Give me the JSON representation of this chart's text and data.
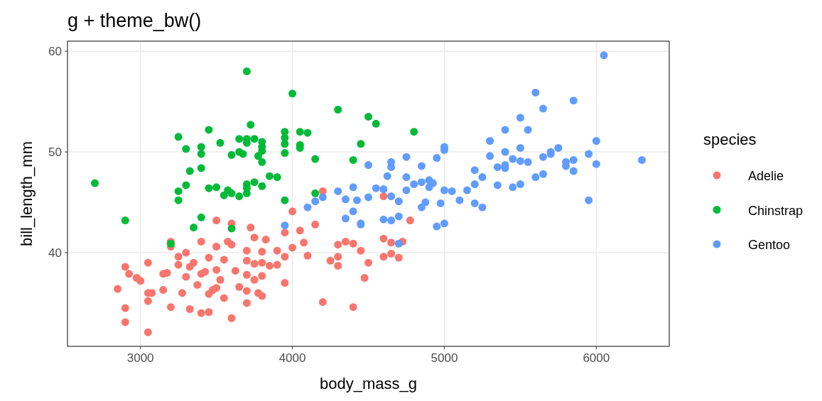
{
  "chart_data": {
    "type": "scatter",
    "title": "g + theme_bw()",
    "xlabel": "body_mass_g",
    "ylabel": "bill_length_mm",
    "legend_title": "species",
    "legend": "right",
    "grid": true,
    "marker": "circle",
    "xlim": [
      2520,
      6480
    ],
    "ylim": [
      30.7,
      61.0
    ],
    "xticks": [
      3000,
      4000,
      5000,
      6000
    ],
    "yticks": [
      40,
      50,
      60
    ],
    "series": [
      {
        "name": "Adelie",
        "color": "#f8766d",
        "x": [
          2850,
          2900,
          2900,
          2900,
          2925,
          2975,
          3000,
          3050,
          3050,
          3050,
          3050,
          3075,
          3150,
          3150,
          3175,
          3200,
          3200,
          3200,
          3250,
          3250,
          3275,
          3300,
          3300,
          3325,
          3325,
          3350,
          3375,
          3400,
          3400,
          3400,
          3425,
          3450,
          3450,
          3450,
          3475,
          3500,
          3500,
          3500,
          3500,
          3525,
          3550,
          3550,
          3575,
          3600,
          3600,
          3600,
          3625,
          3650,
          3700,
          3700,
          3700,
          3700,
          3700,
          3725,
          3750,
          3750,
          3750,
          3775,
          3800,
          3800,
          3800,
          3800,
          3825,
          3850,
          3900,
          3900,
          3950,
          3950,
          3950,
          4000,
          4000,
          4050,
          4075,
          4100,
          4150,
          4200,
          4200,
          4250,
          4300,
          4300,
          4300,
          4350,
          4400,
          4400,
          4450,
          4475,
          4500,
          4600,
          4600,
          4650,
          4650,
          4700,
          4725,
          4775,
          4600
        ],
        "values": [
          36.4,
          33.1,
          34.5,
          38.6,
          37.9,
          37.5,
          37.2,
          32.1,
          35.2,
          36.0,
          39.0,
          36.0,
          37.9,
          36.3,
          38.0,
          41.1,
          34.6,
          40.6,
          39.6,
          38.8,
          36.0,
          40.0,
          37.6,
          34.4,
          38.6,
          39.0,
          36.8,
          41.1,
          37.9,
          34.0,
          38.1,
          39.5,
          35.9,
          34.1,
          36.3,
          43.2,
          40.6,
          38.3,
          36.5,
          37.3,
          39.3,
          35.5,
          41.1,
          42.9,
          40.8,
          33.5,
          38.2,
          36.6,
          40.2,
          39.2,
          37.8,
          36.2,
          35.0,
          42.5,
          41.5,
          38.9,
          37.3,
          36.0,
          40.1,
          39.0,
          37.7,
          35.7,
          41.3,
          38.7,
          40.2,
          38.8,
          39.6,
          42.0,
          37.0,
          44.1,
          40.5,
          42.2,
          41.0,
          39.7,
          42.8,
          46.1,
          35.1,
          39.2,
          40.8,
          38.7,
          39.6,
          41.1,
          34.6,
          40.9,
          40.2,
          37.5,
          39.0,
          45.6,
          39.6,
          39.9,
          41.0,
          39.5,
          41.1,
          43.2,
          41.4
        ]
      },
      {
        "name": "Chinstrap",
        "color": "#00ba38",
        "x": [
          2700,
          2900,
          3200,
          3250,
          3250,
          3250,
          3300,
          3300,
          3325,
          3350,
          3400,
          3400,
          3400,
          3400,
          3450,
          3450,
          3500,
          3525,
          3550,
          3575,
          3600,
          3600,
          3650,
          3650,
          3650,
          3675,
          3700,
          3700,
          3700,
          3700,
          3700,
          3700,
          3725,
          3750,
          3750,
          3775,
          3800,
          3800,
          3800,
          3800,
          3800,
          3850,
          3900,
          3950,
          3950,
          3950,
          3950,
          3950,
          4000,
          4050,
          4050,
          4050,
          4100,
          4150,
          4150,
          4300,
          4400,
          4450,
          4500,
          4550,
          4800,
          3600
        ],
        "values": [
          46.9,
          43.2,
          40.9,
          46.1,
          45.2,
          51.5,
          50.3,
          46.7,
          48.1,
          42.5,
          50.5,
          49.8,
          48.4,
          43.5,
          52.2,
          46.4,
          46.5,
          50.9,
          45.7,
          46.2,
          49.7,
          45.9,
          51.3,
          45.6,
          50.0,
          49.8,
          58.0,
          51.3,
          50.9,
          46.8,
          46.4,
          45.9,
          52.7,
          51.3,
          47.0,
          49.6,
          50.5,
          51.0,
          50.1,
          49.0,
          46.6,
          47.6,
          47.5,
          52.0,
          51.4,
          50.8,
          49.9,
          45.2,
          55.8,
          50.7,
          50.4,
          52.0,
          51.9,
          49.3,
          45.9,
          54.2,
          49.2,
          50.8,
          53.5,
          52.8,
          52.0,
          42.4
        ]
      },
      {
        "name": "Gentoo",
        "color": "#619cff",
        "x": [
          3950,
          4100,
          4150,
          4200,
          4300,
          4350,
          4350,
          4400,
          4400,
          4425,
          4450,
          4450,
          4500,
          4500,
          4550,
          4600,
          4600,
          4625,
          4650,
          4650,
          4650,
          4650,
          4700,
          4700,
          4700,
          4750,
          4750,
          4750,
          4800,
          4850,
          4850,
          4850,
          4875,
          4900,
          4900,
          4925,
          4950,
          4950,
          4975,
          5000,
          5000,
          5000,
          5000,
          5050,
          5100,
          5150,
          5200,
          5200,
          5200,
          5250,
          5250,
          5300,
          5300,
          5350,
          5350,
          5400,
          5400,
          5400,
          5400,
          5450,
          5450,
          5500,
          5500,
          5500,
          5500,
          5550,
          5550,
          5600,
          5600,
          5650,
          5650,
          5650,
          5700,
          5700,
          5750,
          5800,
          5800,
          5850,
          5850,
          5850,
          5950,
          5950,
          6000,
          6000,
          6050,
          6300
        ],
        "values": [
          42.7,
          44.5,
          45.1,
          45.5,
          46.1,
          43.4,
          45.3,
          46.5,
          44.1,
          45.2,
          42.8,
          42.9,
          45.5,
          48.7,
          46.4,
          43.3,
          46.3,
          47.6,
          43.2,
          45.6,
          48.5,
          49.0,
          40.9,
          45.1,
          43.6,
          46.2,
          47.5,
          49.5,
          46.8,
          44.5,
          47.0,
          48.6,
          45.0,
          47.2,
          46.5,
          46.9,
          42.6,
          49.4,
          44.9,
          46.2,
          42.9,
          50.2,
          50.5,
          46.1,
          45.2,
          46.2,
          44.9,
          46.8,
          48.2,
          44.5,
          47.5,
          49.6,
          51.1,
          46.7,
          48.5,
          48.7,
          52.2,
          48.4,
          50.0,
          46.5,
          49.3,
          46.8,
          49.1,
          50.4,
          53.4,
          52.2,
          49.0,
          55.9,
          47.5,
          49.5,
          54.3,
          47.8,
          49.8,
          50.0,
          50.4,
          49.0,
          48.6,
          55.1,
          48.1,
          49.2,
          45.2,
          49.8,
          48.8,
          51.1,
          59.6,
          49.2
        ]
      }
    ]
  }
}
